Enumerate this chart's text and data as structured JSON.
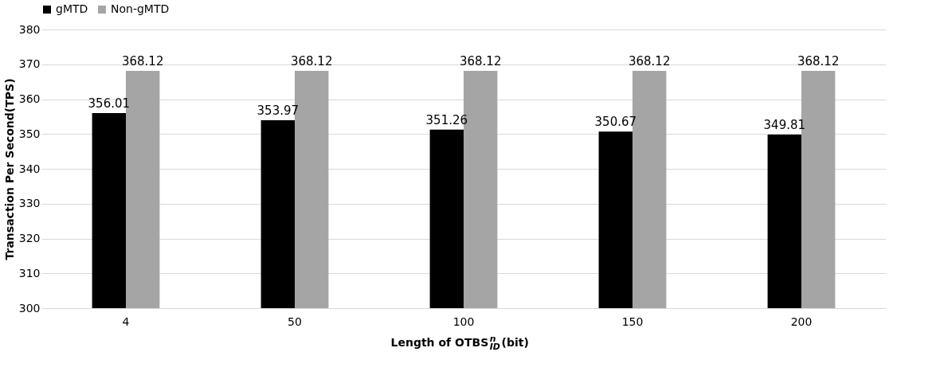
{
  "chart_data": {
    "type": "bar",
    "xlabel": "Length of OTBS$^{n}$$_{ID}$(bit)",
    "ylabel": "Transaction Per Second(TPS)",
    "categories": [
      "4",
      "50",
      "100",
      "150",
      "200"
    ],
    "series": [
      {
        "name": "gMTD",
        "color": "#000000",
        "values": [
          356.01,
          353.97,
          351.26,
          350.67,
          349.81
        ]
      },
      {
        "name": "Non-gMTD",
        "color": "#a5a5a5",
        "values": [
          368.12,
          368.12,
          368.12,
          368.12,
          368.12
        ]
      }
    ],
    "ylim": [
      300,
      380
    ],
    "yticks": [
      300,
      310,
      320,
      330,
      340,
      350,
      360,
      370,
      380
    ],
    "grid": "y",
    "legend": "top",
    "data_labels": true
  }
}
